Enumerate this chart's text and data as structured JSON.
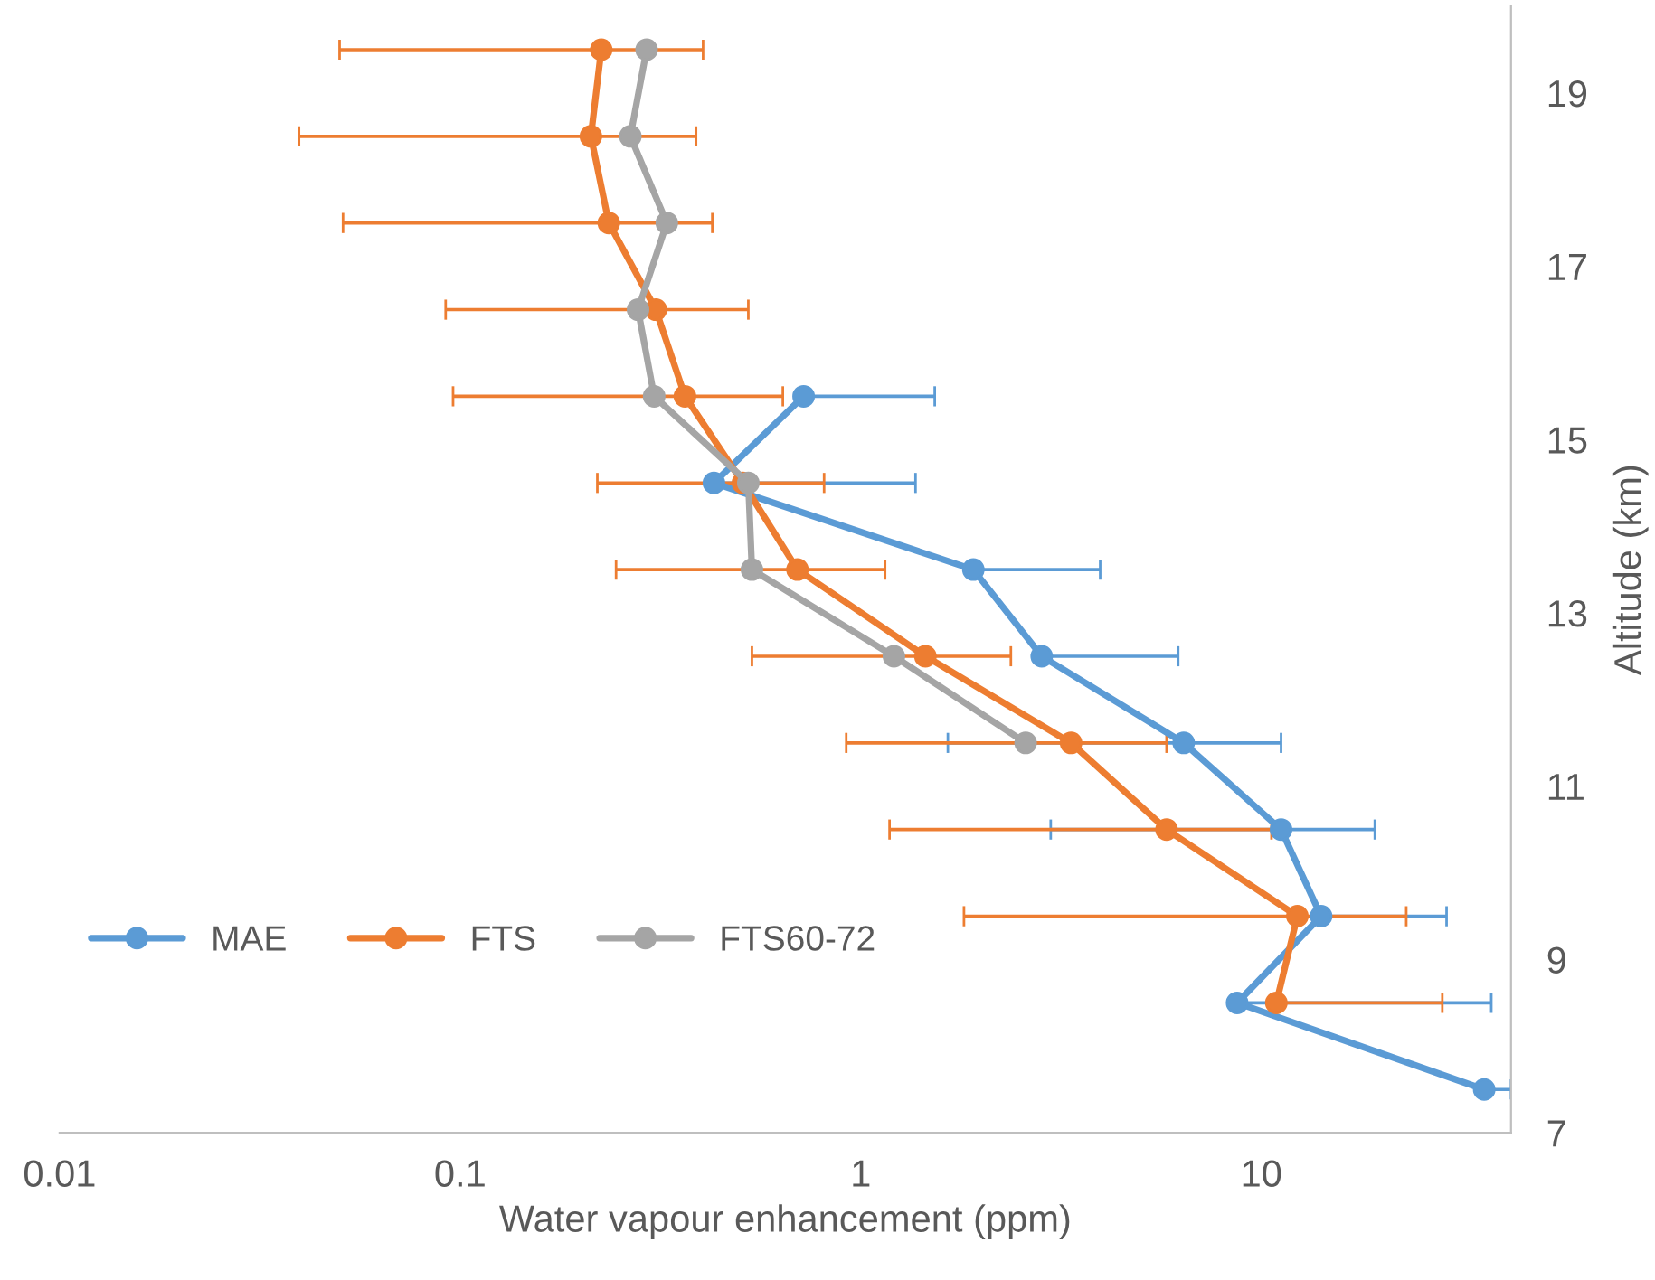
{
  "chart_data": {
    "type": "line",
    "xlabel": "Water vapour enhancement (ppm)",
    "ylabel": "Altitude (km)",
    "log": "x",
    "xlim": [
      0.01,
      42
    ],
    "xticks": [
      0.01,
      0.1,
      1,
      10
    ],
    "ylim": [
      7,
      20
    ],
    "yticks": [
      7,
      9,
      11,
      13,
      15,
      17,
      19
    ],
    "grid": false,
    "legend": "bottom left",
    "marker": "circle",
    "line_style": "solid",
    "series": [
      {
        "name": "MAE",
        "color": "#5b9bd5",
        "x": [
          0.72,
          0.43,
          1.91,
          2.83,
          6.4,
          11.2,
          14.1,
          8.7,
          36
        ],
        "values": [
          15.5,
          14.5,
          13.5,
          12.5,
          11.5,
          10.5,
          9.5,
          8.5,
          7.5
        ],
        "xerrors": [
          [
            0.72,
            1.53
          ],
          [
            0.43,
            1.37
          ],
          [
            1.91,
            3.96
          ],
          [
            2.83,
            6.2
          ],
          [
            1.65,
            11.2
          ],
          [
            2.98,
            19.2
          ],
          [
            14.1,
            29
          ],
          [
            8.7,
            37.5
          ],
          [
            36,
            42
          ]
        ]
      },
      {
        "name": "FTS",
        "color": "#ed7d31",
        "x": [
          0.225,
          0.212,
          0.235,
          0.308,
          0.364,
          0.508,
          0.695,
          1.45,
          3.35,
          5.8,
          12.3,
          10.9
        ],
        "values": [
          19.5,
          18.5,
          17.5,
          16.5,
          15.5,
          14.5,
          13.5,
          12.5,
          11.5,
          10.5,
          9.5,
          8.5
        ],
        "xerrors": [
          [
            0.05,
            0.404
          ],
          [
            0.0396,
            0.388
          ],
          [
            0.051,
            0.426
          ],
          [
            0.092,
            0.524
          ],
          [
            0.096,
            0.639
          ],
          [
            0.22,
            0.81
          ],
          [
            0.245,
            1.15
          ],
          [
            0.535,
            2.37
          ],
          [
            0.92,
            5.8
          ],
          [
            1.18,
            10.6
          ],
          [
            1.81,
            23
          ],
          [
            10.9,
            28.3
          ]
        ]
      },
      {
        "name": "FTS60-72",
        "color": "#a5a5a5",
        "x": [
          0.292,
          0.266,
          0.328,
          0.278,
          0.305,
          0.524,
          0.535,
          1.21,
          2.58
        ],
        "values": [
          19.5,
          18.5,
          17.5,
          16.5,
          15.5,
          14.5,
          13.5,
          12.5,
          11.5
        ]
      }
    ]
  }
}
